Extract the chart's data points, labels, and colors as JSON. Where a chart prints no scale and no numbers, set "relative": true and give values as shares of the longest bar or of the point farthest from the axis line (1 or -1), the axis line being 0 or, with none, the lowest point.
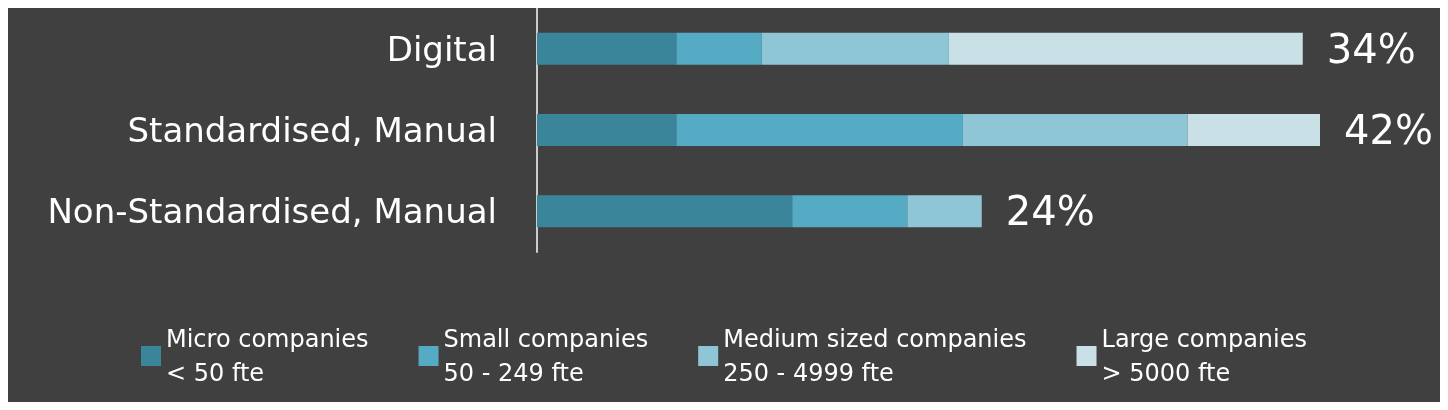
{
  "chart_data": {
    "type": "bar",
    "orientation": "horizontal",
    "stacked": true,
    "relative": true,
    "categories": [
      "Digital",
      "Standardised, Manual",
      "Non-Standardised, Manual"
    ],
    "series": [
      {
        "name": "Micro companies\n< 50 fte",
        "color": "#3a8599",
        "values": [
          0.178,
          0.178,
          0.326
        ]
      },
      {
        "name": "Small companies\n50 - 249 fte",
        "color": "#55aac4",
        "values": [
          0.109,
          0.366,
          0.147
        ]
      },
      {
        "name": "Medium sized companies\n250 - 4999 fte",
        "color": "#8fc6d6",
        "values": [
          0.239,
          0.287,
          0.095
        ]
      },
      {
        "name": "Large companies\n> 5000 fte",
        "color": "#c9e0e6",
        "values": [
          0.452,
          0.169,
          null
        ]
      }
    ],
    "annotations": [
      "34%",
      "42%",
      "24%"
    ],
    "legend": "bottom"
  }
}
